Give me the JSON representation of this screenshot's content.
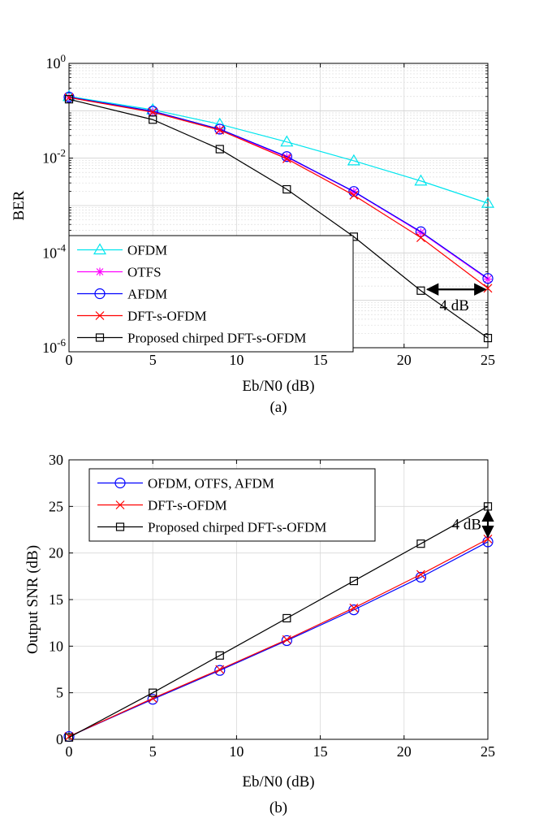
{
  "chart_data": [
    {
      "panel_label": "(a)",
      "type": "line",
      "xlabel": "Eb/N0 (dB)",
      "ylabel": "BER",
      "xlim": [
        0,
        25
      ],
      "ylim": [
        1e-06,
        1
      ],
      "yscale": "log",
      "grid": true,
      "legend_position": "bottom-left",
      "x_ticks": [
        "0",
        "5",
        "10",
        "15",
        "20",
        "25"
      ],
      "y_ticks": [
        {
          "base": "10",
          "exp": "0"
        },
        {
          "base": "10",
          "exp": "-2"
        },
        {
          "base": "10",
          "exp": "-4"
        },
        {
          "base": "10",
          "exp": "-6"
        }
      ],
      "x": [
        0,
        5,
        9,
        13,
        17,
        21,
        25
      ],
      "series": [
        {
          "name": "OFDM",
          "color": "#00e5ee",
          "marker": "triangle",
          "values": [
            0.2,
            0.105,
            0.052,
            0.022,
            0.0088,
            0.0033,
            0.00112
          ]
        },
        {
          "name": "OTFS",
          "color": "#ff00ff",
          "marker": "star",
          "values": [
            0.19,
            0.095,
            0.04,
            0.0105,
            0.00195,
            0.00027,
            2.8e-05
          ]
        },
        {
          "name": "AFDM",
          "color": "#0000ff",
          "marker": "circle",
          "values": [
            0.195,
            0.098,
            0.041,
            0.0108,
            0.00198,
            0.00028,
            2.9e-05
          ]
        },
        {
          "name": "DFT-s-OFDM",
          "color": "#ff0000",
          "marker": "x",
          "values": [
            0.19,
            0.093,
            0.039,
            0.0097,
            0.00165,
            0.00021,
            1.8e-05
          ]
        },
        {
          "name": "Proposed chirped DFT-s-OFDM",
          "color": "#000000",
          "marker": "square",
          "values": [
            0.175,
            0.065,
            0.0155,
            0.0022,
            0.00022,
            1.6e-05,
            1.6e-06
          ]
        }
      ],
      "annotation": {
        "text": "4 dB",
        "x_from": 21,
        "x_to": 25,
        "y": 1.7e-05
      }
    },
    {
      "panel_label": "(b)",
      "type": "line",
      "xlabel": "Eb/N0 (dB)",
      "ylabel": "Output SNR (dB)",
      "xlim": [
        0,
        25
      ],
      "ylim": [
        0,
        30
      ],
      "yscale": "linear",
      "grid": true,
      "legend_position": "top-left",
      "x_ticks": [
        "0",
        "5",
        "10",
        "15",
        "20",
        "25"
      ],
      "y_ticks": [
        "0",
        "5",
        "10",
        "15",
        "20",
        "25",
        "30"
      ],
      "x": [
        0,
        5,
        9,
        13,
        17,
        21,
        25
      ],
      "series": [
        {
          "name": "OFDM, OTFS, AFDM",
          "color": "#0000ff",
          "marker": "circle",
          "values": [
            0.3,
            4.3,
            7.4,
            10.6,
            13.9,
            17.4,
            21.2
          ]
        },
        {
          "name": "DFT-s-OFDM",
          "color": "#ff0000",
          "marker": "x",
          "values": [
            0.3,
            4.4,
            7.5,
            10.7,
            14.1,
            17.7,
            21.5
          ]
        },
        {
          "name": "Proposed chirped DFT-s-OFDM",
          "color": "#000000",
          "marker": "square",
          "values": [
            0.2,
            5.0,
            9.0,
            13.0,
            17.0,
            21.0,
            25.0
          ]
        }
      ],
      "annotation": {
        "text": "4 dB",
        "x": 25,
        "y_from": 21.3,
        "y_to": 25
      }
    }
  ]
}
